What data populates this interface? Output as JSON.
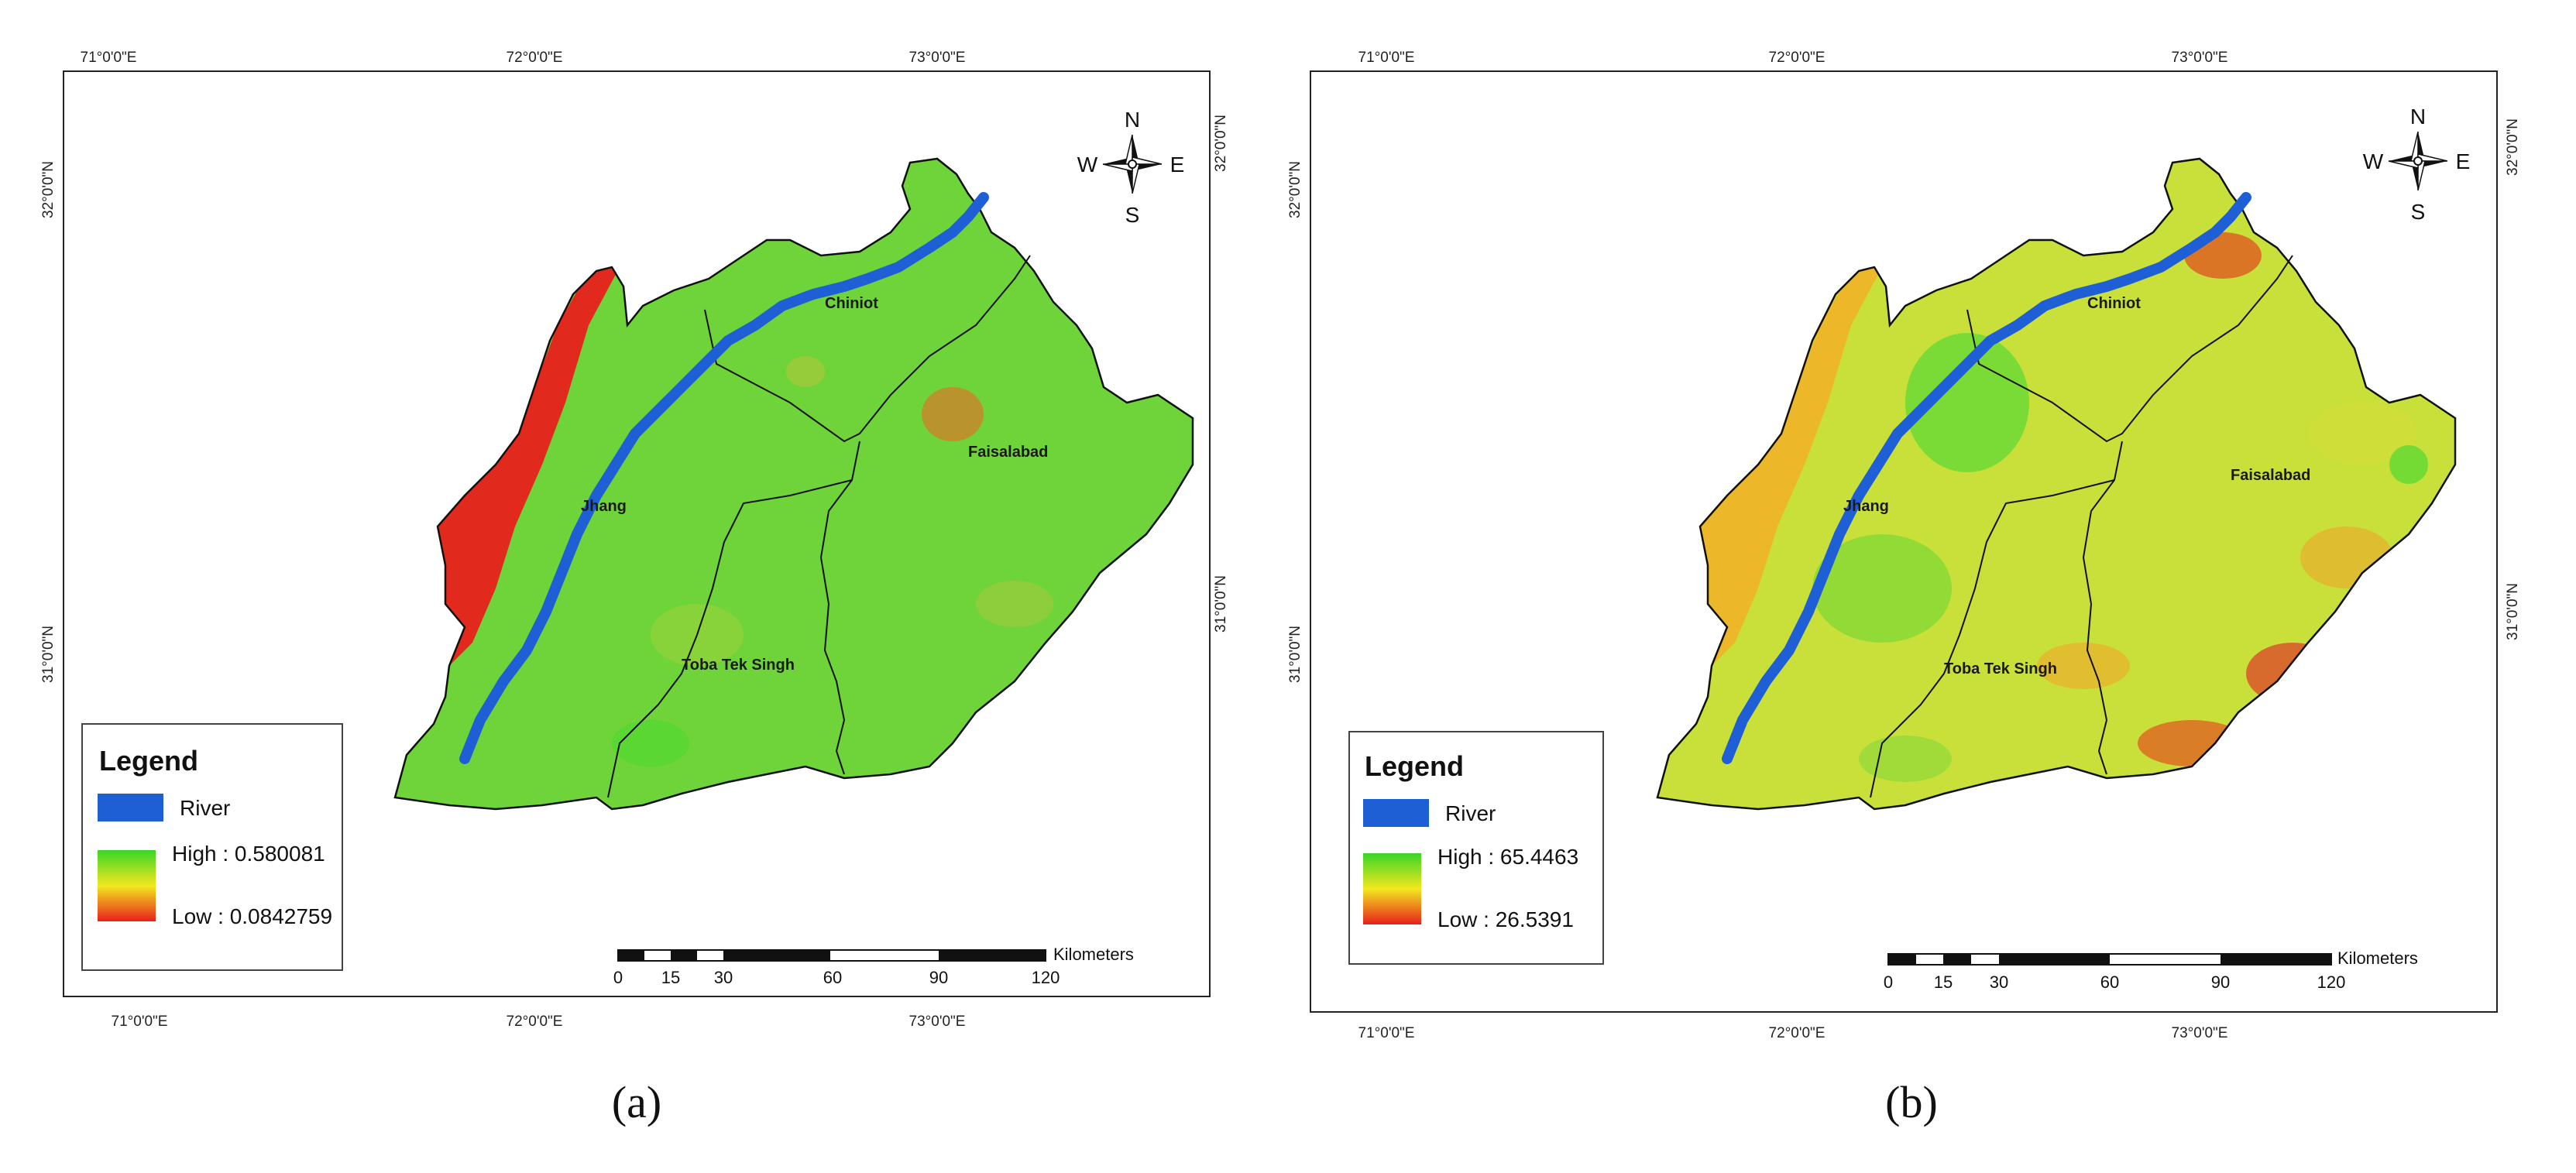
{
  "panels": [
    {
      "caption": "(a)",
      "coords": {
        "top": [
          "71°0'0\"E",
          "72°0'0\"E",
          "73°0'0\"E"
        ],
        "bottom": [
          "71°0'0\"E",
          "72°0'0\"E",
          "73°0'0\"E"
        ],
        "left": [
          "32°0'0\"N",
          "31°0'0\"N"
        ],
        "right": [
          "32°0'0\"N",
          "31°0'0\"N"
        ]
      },
      "places": [
        "Chiniot",
        "Jhang",
        "Faisalabad",
        "Toba Tek Singh"
      ],
      "legend": {
        "title": "Legend",
        "river": "River",
        "high": "High : 0.580081",
        "low": "Low : 0.0842759"
      },
      "compass": [
        "N",
        "S",
        "W",
        "E"
      ],
      "scale": {
        "unit": "Kilometers",
        "ticks": [
          "0",
          "15",
          "30",
          "60",
          "90",
          "120"
        ]
      },
      "colors": {
        "base": "#6fd33a",
        "river": "#1f5fd6",
        "low": "#e8201c",
        "high": "#39d626"
      }
    },
    {
      "caption": "(b)",
      "coords": {
        "top": [
          "71°0'0\"E",
          "72°0'0\"E",
          "73°0'0\"E"
        ],
        "bottom": [
          "71°0'0\"E",
          "72°0'0\"E",
          "73°0'0\"E"
        ],
        "left": [
          "32°0'0\"N",
          "31°0'0\"N"
        ],
        "right": [
          "32°0'0\"N",
          "31°0'0\"N"
        ]
      },
      "places": [
        "Chiniot",
        "Jhang",
        "Faisalabad",
        "Toba Tek Singh"
      ],
      "legend": {
        "title": "Legend",
        "river": "River",
        "high": "High : 65.4463",
        "low": "Low : 26.5391"
      },
      "compass": [
        "N",
        "S",
        "W",
        "E"
      ],
      "scale": {
        "unit": "Kilometers",
        "ticks": [
          "0",
          "15",
          "30",
          "60",
          "90",
          "120"
        ]
      },
      "colors": {
        "base": "#c9e03a",
        "river": "#1f5fd6",
        "low": "#e8201c",
        "high": "#39d626"
      }
    }
  ]
}
